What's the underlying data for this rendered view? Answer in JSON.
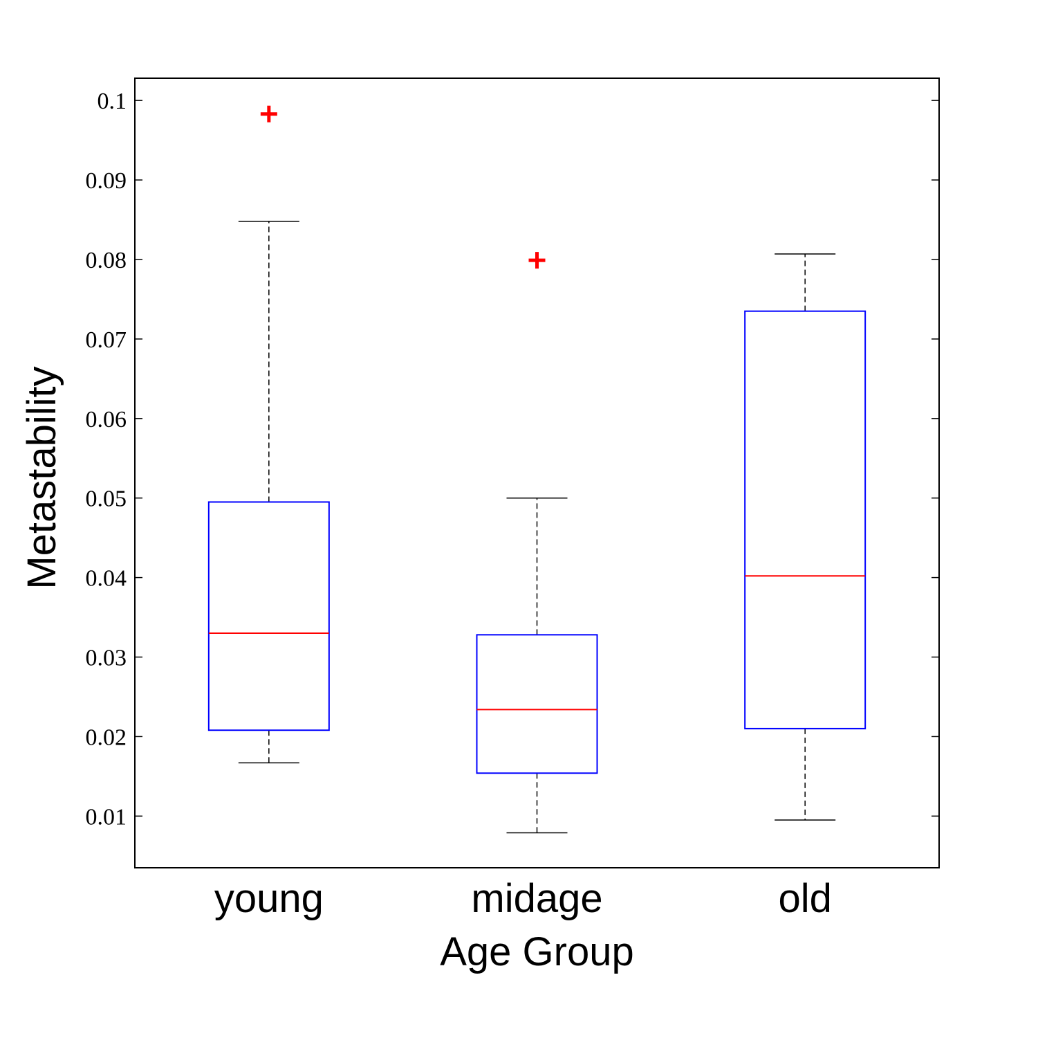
{
  "chart_data": {
    "type": "box",
    "title": "",
    "xlabel": "Age Group",
    "ylabel": "Metastability",
    "categories": [
      "young",
      "midage",
      "old"
    ],
    "ylim": [
      0.0035,
      0.1028
    ],
    "yticks": [
      0.01,
      0.02,
      0.03,
      0.04,
      0.05,
      0.06,
      0.07,
      0.08,
      0.09,
      0.1
    ],
    "ytick_labels": [
      "0.01",
      "0.02",
      "0.03",
      "0.04",
      "0.05",
      "0.06",
      "0.07",
      "0.08",
      "0.09",
      "0.1"
    ],
    "grid": false,
    "legend": "none",
    "boxes": [
      {
        "category": "young",
        "whisker_low": 0.0167,
        "q1": 0.0208,
        "median": 0.033,
        "q3": 0.0495,
        "whisker_high": 0.0848,
        "outliers": [
          0.0983
        ]
      },
      {
        "category": "midage",
        "whisker_low": 0.0079,
        "q1": 0.0154,
        "median": 0.0234,
        "q3": 0.0328,
        "whisker_high": 0.05,
        "outliers": [
          0.0799
        ]
      },
      {
        "category": "old",
        "whisker_low": 0.0095,
        "q1": 0.021,
        "median": 0.0402,
        "q3": 0.0735,
        "whisker_high": 0.0807,
        "outliers": []
      }
    ],
    "colors": {
      "box": "#0000ff",
      "median": "#ff0000",
      "whisker": "#000000",
      "outlier": "#ff0000",
      "axis": "#000000"
    }
  }
}
